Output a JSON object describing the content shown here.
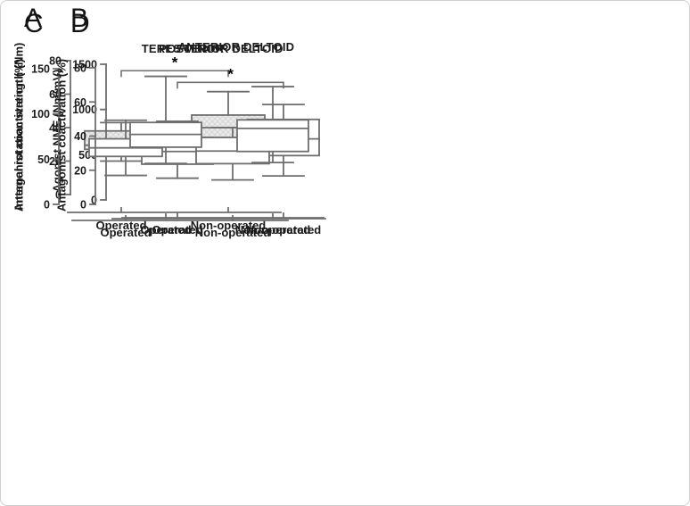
{
  "figure": {
    "description": "Box plot figure comparing Operated vs Non-operated shoulders",
    "background": "#ffffff"
  },
  "colors": {
    "line": "#6e6e6e",
    "text": "#1b1b1b",
    "hatch_fill": "#ebebeb",
    "hatch_line": "#d6d6d6",
    "plain_fill": "#ffffff"
  },
  "chart_data": [
    {
      "type": "box",
      "panel_label": "A",
      "title": "",
      "ylabel": "Internal rotation strength (Nm)",
      "ylim": [
        0,
        80
      ],
      "yticks": [
        0,
        20,
        40,
        60,
        80
      ],
      "categories": [
        "Operated",
        "Non-operated"
      ],
      "series": [
        {
          "name": "Operated",
          "min": 20,
          "q1": 27,
          "median": 29.5,
          "q3": 38,
          "max": 43
        },
        {
          "name": "Non-operated",
          "min": 27.5,
          "q1": 32.5,
          "median": 40,
          "q3": 47.5,
          "max": 61.5
        }
      ],
      "box_style": "hatched",
      "grid": "off",
      "legend": "none",
      "significance": {
        "label": "*",
        "y": 74
      }
    },
    {
      "type": "box",
      "panel_label": "B",
      "title": "ANTERIOR DELTOID",
      "ylabel": "Agonist NME (Nm/mV)",
      "ylim": [
        0,
        1500
      ],
      "yticks": [
        0,
        500,
        1000,
        1500
      ],
      "categories": [
        "Operated",
        "Non-operated"
      ],
      "series": [
        {
          "name": "Operated",
          "min": 240,
          "q1": 395,
          "median": 535,
          "q3": 690,
          "max": 870
        },
        {
          "name": "Non-operated",
          "min": 265,
          "q1": 490,
          "median": 675,
          "q3": 890,
          "max": 1055
        }
      ],
      "box_style": "plain",
      "grid": "off",
      "legend": "none",
      "significance": {
        "label": "*",
        "y": 1300
      }
    },
    {
      "type": "box",
      "panel_label": "C",
      "title": "TERES MINOR",
      "ylabel": "Antagonist coactivation (%)",
      "ylim": [
        0,
        150
      ],
      "yticks": [
        0,
        50,
        100,
        150
      ],
      "categories": [
        "Operated",
        "Non-operated"
      ],
      "series": [
        {
          "name": "Operated",
          "min": 32,
          "q1": 53,
          "median": 62.5,
          "q3": 72.5,
          "max": 93
        },
        {
          "name": "Non-operated",
          "min": 27,
          "q1": 45,
          "median": 59,
          "q3": 74,
          "max": 85
        }
      ],
      "box_style": "plain",
      "grid": "off",
      "legend": "none",
      "significance": null
    },
    {
      "type": "box",
      "panel_label": "D",
      "title": "POSTERIOR DELTOID",
      "ylabel": "Antagonist coactivation (%)",
      "ylim": [
        0,
        80
      ],
      "yticks": [
        0,
        20,
        40,
        60,
        80
      ],
      "categories": [
        "Operated",
        "Non-operated"
      ],
      "series": [
        {
          "name": "Operated",
          "min": 24,
          "q1": 33.5,
          "median": 41,
          "q3": 48,
          "max": 75
        },
        {
          "name": "Non-operated",
          "min": 24.5,
          "q1": 31,
          "median": 44.5,
          "q3": 49.5,
          "max": 69
        }
      ],
      "box_style": "plain",
      "grid": "off",
      "legend": "none",
      "significance": null
    }
  ]
}
